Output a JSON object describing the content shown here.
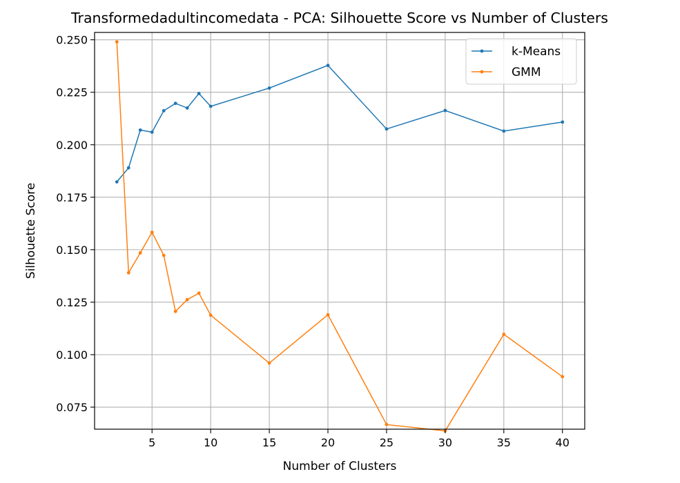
{
  "chart_data": {
    "type": "line",
    "title": "Transformedadultincomedata - PCA: Silhouette Score vs Number of Clusters",
    "xlabel": "Number of Clusters",
    "ylabel": "Silhouette Score",
    "x": [
      2,
      3,
      4,
      5,
      6,
      7,
      8,
      9,
      10,
      15,
      20,
      25,
      30,
      35,
      40
    ],
    "xticks": [
      5,
      10,
      15,
      20,
      25,
      30,
      35,
      40
    ],
    "yticks": [
      0.075,
      0.1,
      0.125,
      0.15,
      0.175,
      0.2,
      0.225,
      0.25
    ],
    "xtick_labels": [
      "5",
      "10",
      "15",
      "20",
      "25",
      "30",
      "35",
      "40"
    ],
    "ytick_labels": [
      "0.075",
      "0.100",
      "0.125",
      "0.150",
      "0.175",
      "0.200",
      "0.225",
      "0.250"
    ],
    "xlim": [
      0.1,
      41.9
    ],
    "ylim": [
      0.0645,
      0.2535
    ],
    "grid": true,
    "legend_position": "top-right",
    "series": [
      {
        "name": "k-Means",
        "color": "#1f77b4",
        "values": [
          0.1823,
          0.189,
          0.207,
          0.206,
          0.2162,
          0.2197,
          0.2175,
          0.2244,
          0.2183,
          0.227,
          0.2378,
          0.2075,
          0.2163,
          0.2065,
          0.2108
        ]
      },
      {
        "name": "GMM",
        "color": "#ff7f0e",
        "values": [
          0.249,
          0.139,
          0.1485,
          0.1583,
          0.1473,
          0.1206,
          0.1262,
          0.1293,
          0.1188,
          0.096,
          0.119,
          0.0667,
          0.0637,
          0.1097,
          0.0895
        ]
      }
    ]
  }
}
